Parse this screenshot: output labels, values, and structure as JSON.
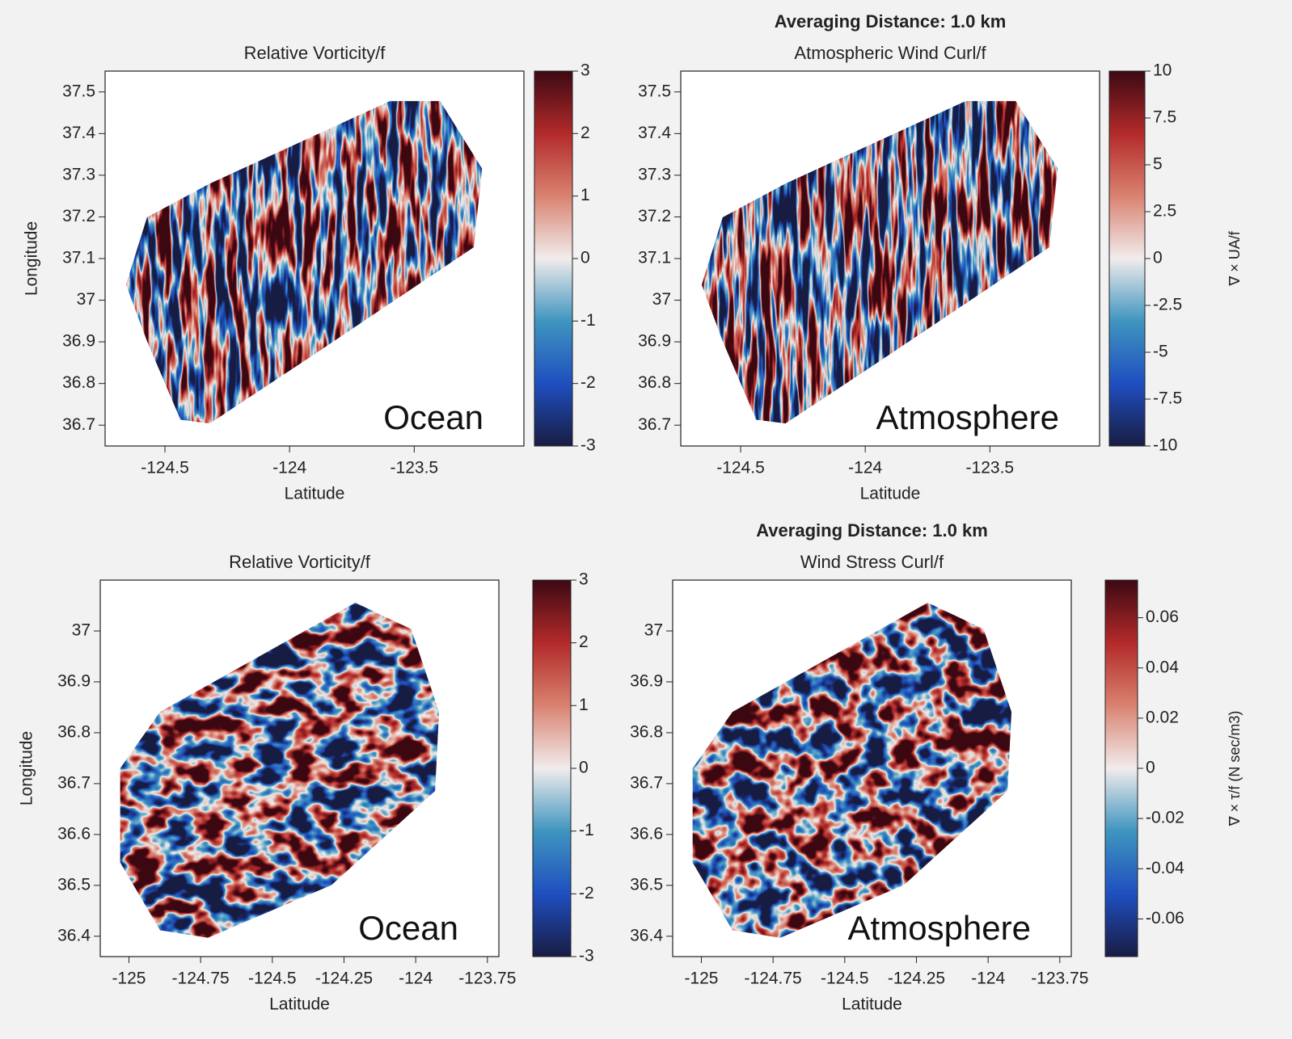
{
  "chart_data": [
    {
      "type": "heatmap",
      "title": "Relative Vorticity/f",
      "xlabel": "Latitude",
      "ylabel": "Longitude",
      "annotation": "Ocean",
      "xlim": [
        -124.74,
        -123.06
      ],
      "xticks": [
        -124.5,
        -124,
        -123.5
      ],
      "ylim": [
        36.65,
        37.55
      ],
      "yticks": [
        36.7,
        36.8,
        36.9,
        37,
        37.1,
        37.2,
        37.3,
        37.4,
        37.5
      ],
      "colorbar": {
        "lim": [
          -3,
          3
        ],
        "ticks": [
          -3,
          -2,
          -1,
          0,
          1,
          2,
          3
        ]
      },
      "colormap": [
        "#181c43",
        "#1f4fbf",
        "#3f95bf",
        "#f1ecec",
        "#d98270",
        "#b32a2a",
        "#3c0912"
      ]
    },
    {
      "type": "heatmap",
      "suptitle": "Averaging Distance: 1.0 km",
      "title": "Atmospheric Wind Curl/f",
      "xlabel": "Latitude",
      "annotation": "Atmosphere",
      "xlim": [
        -124.74,
        -123.06
      ],
      "xticks": [
        -124.5,
        -124,
        -123.5
      ],
      "ylim": [
        36.65,
        37.55
      ],
      "yticks": [
        36.7,
        36.8,
        36.9,
        37,
        37.1,
        37.2,
        37.3,
        37.4,
        37.5
      ],
      "colorbar": {
        "lim": [
          -10,
          10
        ],
        "ticks": [
          -10,
          -7.5,
          -5,
          -2.5,
          0,
          2.5,
          5,
          7.5,
          10
        ],
        "label": "∇ × UA/f"
      },
      "colormap": [
        "#181c43",
        "#1f4fbf",
        "#3f95bf",
        "#f1ecec",
        "#d98270",
        "#b32a2a",
        "#3c0912"
      ]
    },
    {
      "type": "heatmap",
      "title": "Relative Vorticity/f",
      "xlabel": "Latitude",
      "ylabel": "Longitude",
      "annotation": "Ocean",
      "xlim": [
        -125.1,
        -123.71
      ],
      "xticks": [
        -125,
        -124.75,
        -124.5,
        -124.25,
        -124,
        -123.75
      ],
      "ylim": [
        36.36,
        37.1
      ],
      "yticks": [
        36.4,
        36.5,
        36.6,
        36.7,
        36.8,
        36.9,
        37
      ],
      "colorbar": {
        "lim": [
          -3,
          3
        ],
        "ticks": [
          -3,
          -2,
          -1,
          0,
          1,
          2,
          3
        ]
      },
      "colormap": [
        "#181c43",
        "#1f4fbf",
        "#3f95bf",
        "#f1ecec",
        "#d98270",
        "#b32a2a",
        "#3c0912"
      ]
    },
    {
      "type": "heatmap",
      "suptitle": "Averaging Distance: 1.0 km",
      "title": "Wind Stress Curl/f",
      "xlabel": "Latitude",
      "annotation": "Atmosphere",
      "xlim": [
        -125.1,
        -123.71
      ],
      "xticks": [
        -125,
        -124.75,
        -124.5,
        -124.25,
        -124,
        -123.75
      ],
      "ylim": [
        36.36,
        37.1
      ],
      "yticks": [
        36.4,
        36.5,
        36.6,
        36.7,
        36.8,
        36.9,
        37
      ],
      "colorbar": {
        "lim": [
          -0.075,
          0.075
        ],
        "ticks": [
          -0.06,
          -0.04,
          -0.02,
          0,
          0.02,
          0.04,
          0.06
        ],
        "label": "∇ × τ/f  (N sec/m3)"
      },
      "colormap": [
        "#181c43",
        "#1f4fbf",
        "#3f95bf",
        "#f1ecec",
        "#d98270",
        "#b32a2a",
        "#3c0912"
      ]
    }
  ]
}
